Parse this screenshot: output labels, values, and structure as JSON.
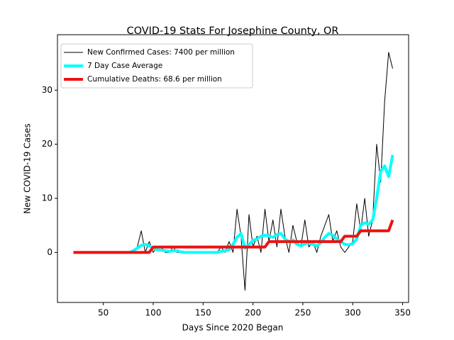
{
  "chart_data": {
    "type": "line",
    "title": "COVID-19 Stats For Josephine County, OR",
    "x_label": "Days Since 2020 Began",
    "y_label": "New COVID-19 Cases",
    "x": [
      20,
      24,
      28,
      32,
      36,
      40,
      44,
      48,
      52,
      56,
      60,
      64,
      68,
      72,
      76,
      80,
      84,
      88,
      92,
      96,
      100,
      104,
      108,
      112,
      116,
      120,
      124,
      128,
      132,
      136,
      140,
      144,
      148,
      152,
      156,
      160,
      164,
      168,
      172,
      176,
      180,
      184,
      188,
      192,
      196,
      200,
      204,
      208,
      212,
      216,
      220,
      224,
      228,
      232,
      236,
      240,
      244,
      248,
      252,
      256,
      260,
      264,
      268,
      272,
      276,
      280,
      284,
      288,
      292,
      296,
      300,
      304,
      308,
      312,
      316,
      320,
      324,
      328,
      332,
      336,
      340
    ],
    "series": [
      {
        "name": "New Confirmed Cases: 7400 per million",
        "color": "#000000",
        "linewidth": 1,
        "values": [
          0,
          0,
          0,
          0,
          0,
          0,
          0,
          0,
          0,
          0,
          0,
          0,
          0,
          0,
          0,
          0,
          1,
          4,
          0,
          2,
          0,
          1,
          1,
          0,
          0,
          1,
          0,
          0,
          0,
          0,
          0,
          0,
          0,
          0,
          0,
          0,
          0,
          1,
          0,
          2,
          0,
          8,
          3,
          -7,
          7,
          1,
          3,
          0,
          8,
          2,
          6,
          1,
          8,
          3,
          0,
          5,
          2,
          1,
          6,
          1,
          2,
          0,
          3,
          5,
          7,
          2,
          4,
          1,
          0,
          1,
          2,
          9,
          4,
          10,
          3,
          6,
          20,
          13,
          28,
          37,
          34
        ]
      },
      {
        "name": "7 Day Case Average",
        "color": "#00ffff",
        "linewidth": 4,
        "values": [
          0,
          0,
          0,
          0,
          0,
          0,
          0,
          0,
          0,
          0,
          0,
          0,
          0,
          0,
          0,
          0.3,
          0.8,
          1.3,
          1.5,
          1.2,
          0.8,
          0.5,
          0.4,
          0.3,
          0.2,
          0.3,
          0.3,
          0.1,
          0,
          0,
          0,
          0,
          0,
          0,
          0,
          0,
          0,
          0.2,
          0.3,
          0.5,
          1.5,
          2.8,
          3.5,
          0.8,
          1.5,
          2.2,
          2.5,
          3,
          3.2,
          3,
          2.8,
          3.3,
          3.5,
          2.5,
          2,
          2.3,
          1.5,
          1.2,
          1.6,
          1.8,
          1.5,
          1.2,
          1.8,
          2.8,
          3.5,
          3.2,
          2.5,
          2,
          1.5,
          1.4,
          1.6,
          2.5,
          5,
          5.5,
          5.2,
          6,
          10,
          15,
          16,
          14,
          18
        ]
      },
      {
        "name": "Cumulative Deaths: 68.6 per million",
        "color": "#ee1111",
        "linewidth": 4,
        "values": [
          0,
          0,
          0,
          0,
          0,
          0,
          0,
          0,
          0,
          0,
          0,
          0,
          0,
          0,
          0,
          0,
          0,
          0,
          0,
          0,
          1,
          1,
          1,
          1,
          1,
          1,
          1,
          1,
          1,
          1,
          1,
          1,
          1,
          1,
          1,
          1,
          1,
          1,
          1,
          1,
          1,
          1,
          1,
          1,
          1,
          1,
          1,
          1,
          1,
          2,
          2,
          2,
          2,
          2,
          2,
          2,
          2,
          2,
          2,
          2,
          2,
          2,
          2,
          2,
          2,
          2,
          2,
          2,
          3,
          3,
          3,
          3,
          4,
          4,
          4,
          4,
          4,
          4,
          4,
          4,
          6
        ]
      }
    ],
    "xlim": [
      4,
      356
    ],
    "xticks": [
      50,
      100,
      150,
      200,
      250,
      300,
      350
    ],
    "ylim": [
      -9.25,
      40.25
    ],
    "yticks": [
      0,
      10,
      20,
      30
    ],
    "legend": "upper-left",
    "grid": false
  }
}
